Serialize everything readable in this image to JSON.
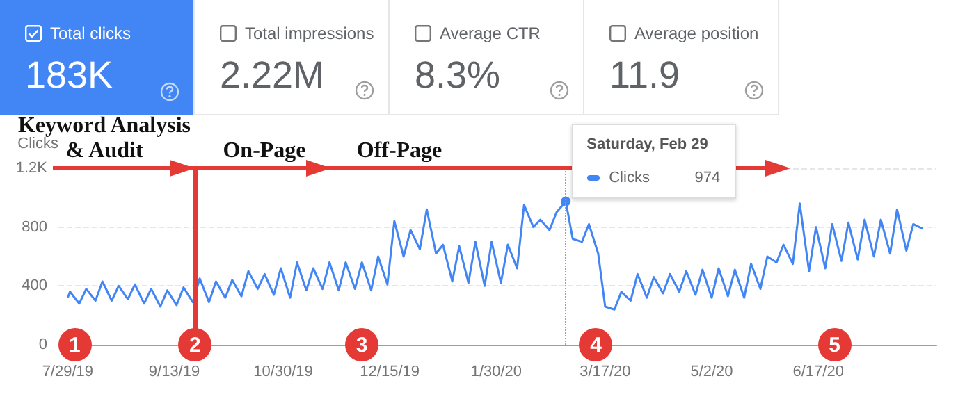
{
  "chart_data": [
    {
      "type": "other",
      "annotations": [
        "Total clicks",
        "183K",
        "Total impressions",
        "2.22M",
        "Average CTR",
        "8.3%",
        "Average position",
        "11.9"
      ]
    },
    {
      "type": "line",
      "ylabel": "Clicks",
      "x": [
        "2019-07-29",
        "2019-07-30",
        "2019-08-03",
        "2019-08-06",
        "2019-08-10",
        "2019-08-13",
        "2019-08-17",
        "2019-08-20",
        "2019-08-24",
        "2019-08-27",
        "2019-08-31",
        "2019-09-03",
        "2019-09-07",
        "2019-09-10",
        "2019-09-14",
        "2019-09-17",
        "2019-09-21",
        "2019-09-24",
        "2019-09-28",
        "2019-10-01",
        "2019-10-05",
        "2019-10-08",
        "2019-10-12",
        "2019-10-15",
        "2019-10-19",
        "2019-10-22",
        "2019-10-26",
        "2019-10-29",
        "2019-11-02",
        "2019-11-05",
        "2019-11-09",
        "2019-11-12",
        "2019-11-16",
        "2019-11-19",
        "2019-11-23",
        "2019-11-26",
        "2019-11-30",
        "2019-12-03",
        "2019-12-07",
        "2019-12-10",
        "2019-12-14",
        "2019-12-17",
        "2019-12-21",
        "2019-12-24",
        "2019-12-28",
        "2019-12-31",
        "2020-01-04",
        "2020-01-07",
        "2020-01-11",
        "2020-01-14",
        "2020-01-18",
        "2020-01-21",
        "2020-01-25",
        "2020-01-28",
        "2020-02-01",
        "2020-02-04",
        "2020-02-08",
        "2020-02-11",
        "2020-02-15",
        "2020-02-18",
        "2020-02-22",
        "2020-02-25",
        "2020-02-29",
        "2020-03-03",
        "2020-03-07",
        "2020-03-10",
        "2020-03-14",
        "2020-03-17",
        "2020-03-21",
        "2020-03-24",
        "2020-03-28",
        "2020-03-31",
        "2020-04-04",
        "2020-04-07",
        "2020-04-11",
        "2020-04-14",
        "2020-04-18",
        "2020-04-21",
        "2020-04-25",
        "2020-04-28",
        "2020-05-02",
        "2020-05-05",
        "2020-05-09",
        "2020-05-12",
        "2020-05-16",
        "2020-05-19",
        "2020-05-23",
        "2020-05-26",
        "2020-05-30",
        "2020-06-02",
        "2020-06-06",
        "2020-06-09",
        "2020-06-13",
        "2020-06-16",
        "2020-06-20",
        "2020-06-23",
        "2020-06-27",
        "2020-06-30",
        "2020-07-04",
        "2020-07-07",
        "2020-07-11",
        "2020-07-14",
        "2020-07-18",
        "2020-07-21",
        "2020-07-25",
        "2020-07-28",
        "2020-08-01"
      ],
      "series": [
        {
          "name": "Clicks",
          "color": "#4285f4",
          "values": [
            320,
            360,
            280,
            380,
            300,
            430,
            300,
            400,
            310,
            410,
            280,
            380,
            260,
            370,
            270,
            390,
            290,
            450,
            290,
            430,
            320,
            440,
            330,
            500,
            380,
            480,
            340,
            520,
            320,
            560,
            370,
            520,
            380,
            560,
            370,
            560,
            380,
            560,
            370,
            600,
            410,
            840,
            600,
            780,
            650,
            920,
            620,
            680,
            430,
            670,
            420,
            700,
            400,
            700,
            420,
            680,
            520,
            950,
            800,
            850,
            780,
            900,
            974,
            720,
            700,
            820,
            620,
            260,
            240,
            360,
            300,
            480,
            320,
            460,
            350,
            480,
            360,
            500,
            340,
            510,
            320,
            520,
            330,
            510,
            320,
            550,
            380,
            600,
            560,
            680,
            550,
            960,
            500,
            800,
            520,
            820,
            570,
            830,
            580,
            850,
            600,
            850,
            620,
            920,
            640,
            820,
            790
          ]
        }
      ],
      "xlim": [
        "2019-07-25",
        "2020-08-07"
      ],
      "xticks": [
        {
          "value": "2019-07-29",
          "label": "7/29/19"
        },
        {
          "value": "2019-09-13",
          "label": "9/13/19"
        },
        {
          "value": "2019-10-30",
          "label": "10/30/19"
        },
        {
          "value": "2019-12-15",
          "label": "12/15/19"
        },
        {
          "value": "2020-01-30",
          "label": "1/30/20"
        },
        {
          "value": "2020-03-17",
          "label": "3/17/20"
        },
        {
          "value": "2020-05-02",
          "label": "5/2/20"
        },
        {
          "value": "2020-06-17",
          "label": "6/17/20"
        }
      ],
      "ylim": [
        0,
        1200
      ],
      "yticks": [
        0,
        400,
        800,
        {
          "value": 1200,
          "label": "1.2K"
        }
      ],
      "grid": "y",
      "ref_lines": [
        {
          "axis": "x",
          "value": "2019-09-22",
          "color": "#e53935",
          "line_style": "solid"
        },
        {
          "axis": "x",
          "value": "2020-02-29",
          "color": "#9e9e9e",
          "line_style": "dotted"
        }
      ],
      "annotations": [
        "Keyword Analysis\n& Audit",
        "On-Page",
        "Off-Page",
        {
          "text": "1",
          "x": "2019-08-01",
          "y": 0
        },
        {
          "text": "2",
          "x": "2019-09-22",
          "y": 0
        },
        {
          "text": "3",
          "x": "2019-12-03",
          "y": 0
        },
        {
          "text": "4",
          "x": "2020-03-13",
          "y": 0
        },
        {
          "text": "5",
          "x": "2020-06-24",
          "y": 0
        },
        "Saturday, Feb 29",
        "974"
      ]
    }
  ]
}
